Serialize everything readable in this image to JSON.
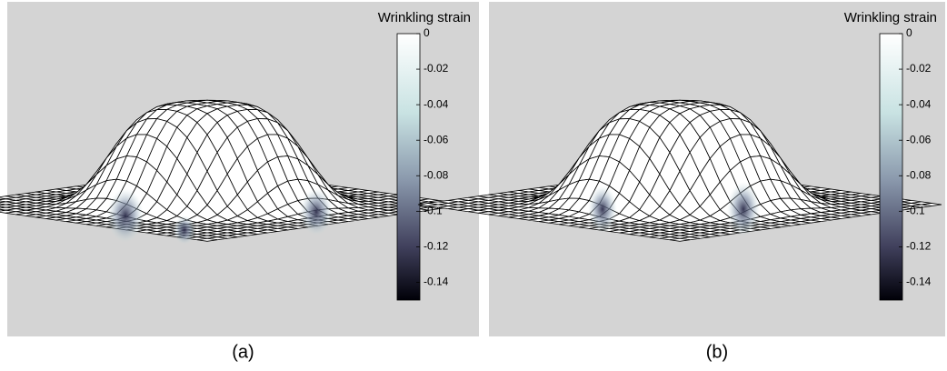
{
  "panels": [
    {
      "label": "(a)",
      "colorbar": {
        "title": "Wrinkling strain",
        "lim": [
          0,
          -0.15
        ],
        "ticks": [
          0,
          -0.02,
          -0.04,
          -0.06,
          -0.08,
          -0.1,
          -0.12,
          -0.14
        ]
      }
    },
    {
      "label": "(b)",
      "colorbar": {
        "title": "Wrinkling strain",
        "lim": [
          0,
          -0.15
        ],
        "ticks": [
          0,
          -0.02,
          -0.04,
          -0.06,
          -0.08,
          -0.1,
          -0.12,
          -0.14
        ]
      }
    }
  ]
}
